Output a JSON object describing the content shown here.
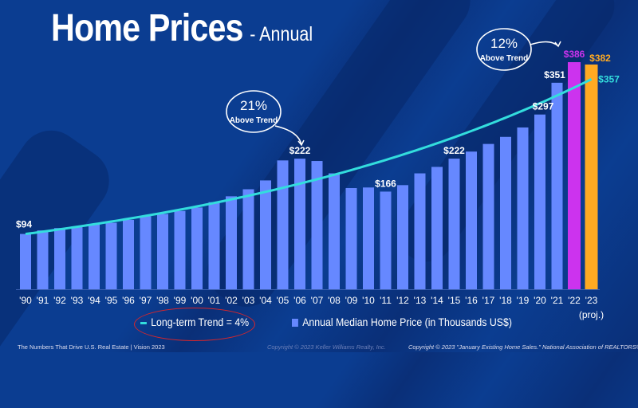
{
  "title": "Home Prices",
  "subtitle": "- Annual",
  "colors": {
    "bar": "#6688ff",
    "bar_2022": "#cc33ee",
    "bar_2023": "#ffaa22",
    "trend": "#33dddd",
    "background": "#0b3d91",
    "ellipse": "#d8262b"
  },
  "chart_data": {
    "type": "bar",
    "title": "Home Prices - Annual",
    "categories": [
      "'90",
      "'91",
      "'92",
      "'93",
      "'94",
      "'95",
      "'96",
      "'97",
      "'98",
      "'99",
      "'00",
      "'01",
      "'02",
      "'03",
      "'04",
      "'05",
      "'06",
      "'07",
      "'08",
      "'09",
      "'10",
      "'11",
      "'12",
      "'13",
      "'14",
      "'15",
      "'16",
      "'17",
      "'18",
      "'19",
      "'20",
      "'21",
      "'22",
      "'23"
    ],
    "category_note": "(proj.)",
    "series": [
      {
        "name": "Annual Median Home Price (in Thousands US$)",
        "values": [
          94,
          100,
          104,
          107,
          110,
          113,
          118,
          124,
          128,
          133,
          139,
          148,
          158,
          170,
          185,
          219,
          222,
          218,
          197,
          172,
          173,
          166,
          177,
          197,
          208,
          222,
          234,
          247,
          259,
          275,
          297,
          351,
          386,
          382
        ]
      },
      {
        "name": "Long-term Trend = 4%",
        "type": "line",
        "start": 94,
        "end": 357
      }
    ],
    "data_labels": [
      {
        "index": 0,
        "text": "$94"
      },
      {
        "index": 16,
        "text": "$222"
      },
      {
        "index": 21,
        "text": "$166"
      },
      {
        "index": 25,
        "text": "$222"
      },
      {
        "index": 30,
        "text": "$297"
      },
      {
        "index": 31,
        "text": "$351"
      },
      {
        "index": 32,
        "text": "$386"
      },
      {
        "index": 33,
        "text": "$382"
      }
    ],
    "trend_label": "$357",
    "ylim": [
      0,
      400
    ],
    "grid": false,
    "legend_placement": "bottom"
  },
  "annotations": [
    {
      "pct": "21%",
      "text": "Above Trend"
    },
    {
      "pct": "12%",
      "text": "Above Trend"
    }
  ],
  "legend": {
    "trend": "Long-term Trend = 4%",
    "bars": "Annual Median Home Price (in Thousands US$)"
  },
  "footer": {
    "left": "The Numbers That Drive U.S. Real Estate  |  Vision 2023",
    "center": "Copyright © 2023 Keller Williams Realty, Inc.",
    "right": "Copyright © 2023 \"January Existing Home Sales.\" National Association of REALTORS®."
  }
}
